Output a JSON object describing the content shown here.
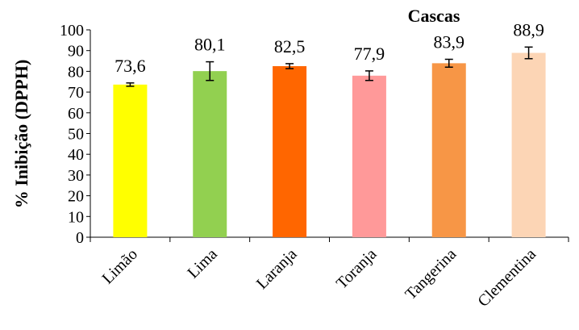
{
  "chart_data": {
    "type": "bar",
    "title": "Cascas",
    "xlabel": "",
    "ylabel": "% Inibição (DPPH)",
    "categories": [
      "Limão",
      "Lima",
      "Laranja",
      "Toranja",
      "Tangerina",
      "Clementina"
    ],
    "values": [
      73.6,
      80.1,
      82.5,
      77.9,
      83.9,
      88.9
    ],
    "value_labels": [
      "73,6",
      "80,1",
      "82,5",
      "77,9",
      "83,9",
      "88,9"
    ],
    "errors": [
      0.8,
      4.5,
      1.2,
      2.3,
      1.9,
      2.8
    ],
    "colors": [
      "#FFFF00",
      "#92D050",
      "#FF6600",
      "#FF9999",
      "#F79646",
      "#FCD5B5"
    ],
    "ylim": [
      0,
      100
    ],
    "yticks": [
      0,
      10,
      20,
      30,
      40,
      50,
      60,
      70,
      80,
      90,
      100
    ],
    "grid": false,
    "legend": "none"
  }
}
